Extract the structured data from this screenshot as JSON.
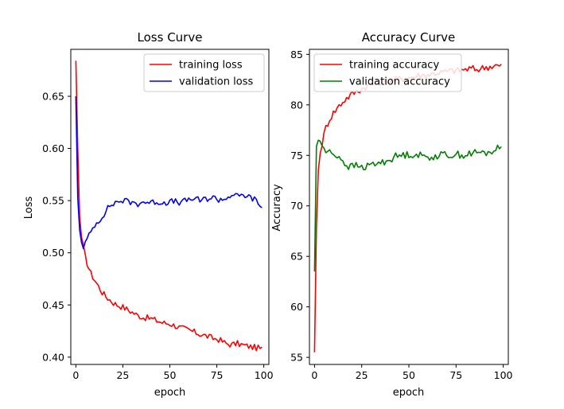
{
  "chart_data": [
    {
      "type": "line",
      "title": "Loss Curve",
      "xlabel": "epoch",
      "ylabel": "Loss",
      "xlim": [
        -2.7,
        102.7
      ],
      "ylim": [
        0.393,
        0.695
      ],
      "xticks": [
        0,
        25,
        50,
        75,
        100
      ],
      "yticks": [
        0.4,
        0.45,
        0.5,
        0.55,
        0.6,
        0.65
      ],
      "ytick_labels": [
        "0.40",
        "0.45",
        "0.50",
        "0.55",
        "0.60",
        "0.65"
      ],
      "legend": "upper-right",
      "grid": false,
      "series": [
        {
          "name": "training loss",
          "color": "#ff0000",
          "keypoints": [
            [
              0,
              0.684
            ],
            [
              1,
              0.6
            ],
            [
              2,
              0.535
            ],
            [
              3,
              0.515
            ],
            [
              4,
              0.505
            ],
            [
              5,
              0.496
            ],
            [
              6,
              0.49
            ],
            [
              8,
              0.48
            ],
            [
              10,
              0.474
            ],
            [
              12,
              0.468
            ],
            [
              14,
              0.462
            ],
            [
              16,
              0.458
            ],
            [
              18,
              0.455
            ],
            [
              20,
              0.452
            ],
            [
              22,
              0.45
            ],
            [
              25,
              0.448
            ],
            [
              28,
              0.445
            ],
            [
              30,
              0.443
            ],
            [
              33,
              0.44
            ],
            [
              36,
              0.438
            ],
            [
              40,
              0.437
            ],
            [
              43,
              0.435
            ],
            [
              46,
              0.433
            ],
            [
              50,
              0.432
            ],
            [
              53,
              0.43
            ],
            [
              56,
              0.428
            ],
            [
              60,
              0.426
            ],
            [
              63,
              0.424
            ],
            [
              66,
              0.422
            ],
            [
              70,
              0.42
            ],
            [
              73,
              0.418
            ],
            [
              76,
              0.417
            ],
            [
              80,
              0.413
            ],
            [
              83,
              0.412
            ],
            [
              86,
              0.413
            ],
            [
              90,
              0.411
            ],
            [
              93,
              0.41
            ],
            [
              96,
              0.409
            ],
            [
              99,
              0.408
            ]
          ]
        },
        {
          "name": "validation loss",
          "color": "#0000ff",
          "keypoints": [
            [
              0,
              0.65
            ],
            [
              1,
              0.553
            ],
            [
              2,
              0.522
            ],
            [
              3,
              0.51
            ],
            [
              4,
              0.506
            ],
            [
              5,
              0.509
            ],
            [
              6,
              0.513
            ],
            [
              8,
              0.52
            ],
            [
              10,
              0.527
            ],
            [
              12,
              0.53
            ],
            [
              14,
              0.535
            ],
            [
              16,
              0.54
            ],
            [
              18,
              0.545
            ],
            [
              20,
              0.547
            ],
            [
              22,
              0.549
            ],
            [
              25,
              0.55
            ],
            [
              28,
              0.549
            ],
            [
              30,
              0.548
            ],
            [
              33,
              0.547
            ],
            [
              36,
              0.549
            ],
            [
              40,
              0.548
            ],
            [
              43,
              0.549
            ],
            [
              46,
              0.548
            ],
            [
              50,
              0.549
            ],
            [
              53,
              0.549
            ],
            [
              56,
              0.548
            ],
            [
              60,
              0.551
            ],
            [
              63,
              0.552
            ],
            [
              66,
              0.55
            ],
            [
              70,
              0.552
            ],
            [
              73,
              0.553
            ],
            [
              76,
              0.551
            ],
            [
              80,
              0.552
            ],
            [
              83,
              0.556
            ],
            [
              86,
              0.554
            ],
            [
              90,
              0.555
            ],
            [
              93,
              0.553
            ],
            [
              96,
              0.55
            ],
            [
              99,
              0.543
            ]
          ]
        }
      ]
    },
    {
      "type": "line",
      "title": "Accuracy Curve",
      "xlabel": "epoch",
      "ylabel": "Accuracy",
      "xlim": [
        -2.7,
        102.7
      ],
      "ylim": [
        54.3,
        85.5
      ],
      "xticks": [
        0,
        25,
        50,
        75,
        100
      ],
      "yticks": [
        55,
        60,
        65,
        70,
        75,
        80,
        85
      ],
      "ytick_labels": [
        "55",
        "60",
        "65",
        "70",
        "75",
        "80",
        "85"
      ],
      "legend": "upper-left",
      "grid": false,
      "series": [
        {
          "name": "training accuracy",
          "color": "#ff0000",
          "keypoints": [
            [
              0,
              55.5
            ],
            [
              1,
              68
            ],
            [
              2,
              73.5
            ],
            [
              3,
              75.2
            ],
            [
              4,
              76.2
            ],
            [
              5,
              77
            ],
            [
              6,
              77.8
            ],
            [
              8,
              78.6
            ],
            [
              10,
              79.2
            ],
            [
              12,
              79.7
            ],
            [
              14,
              80.1
            ],
            [
              16,
              80.5
            ],
            [
              18,
              80.8
            ],
            [
              20,
              81.1
            ],
            [
              22,
              81.3
            ],
            [
              25,
              81.6
            ],
            [
              28,
              81.9
            ],
            [
              30,
              82
            ],
            [
              33,
              82.2
            ],
            [
              36,
              82.3
            ],
            [
              40,
              82.4
            ],
            [
              43,
              82.5
            ],
            [
              46,
              82.6
            ],
            [
              50,
              82.7
            ],
            [
              53,
              82.8
            ],
            [
              56,
              82.9
            ],
            [
              60,
              83
            ],
            [
              63,
              83.1
            ],
            [
              66,
              83.2
            ],
            [
              70,
              83.3
            ],
            [
              73,
              83.4
            ],
            [
              76,
              83.4
            ],
            [
              80,
              83.5
            ],
            [
              83,
              83.6
            ],
            [
              86,
              83.5
            ],
            [
              90,
              83.7
            ],
            [
              93,
              83.8
            ],
            [
              96,
              83.9
            ],
            [
              99,
              83.8
            ]
          ]
        },
        {
          "name": "validation accuracy",
          "color": "#008000",
          "keypoints": [
            [
              0,
              63.5
            ],
            [
              1,
              75.9
            ],
            [
              2,
              76.5
            ],
            [
              3,
              76.4
            ],
            [
              4,
              76
            ],
            [
              5,
              75.6
            ],
            [
              6,
              75.4
            ],
            [
              8,
              75.3
            ],
            [
              10,
              75.1
            ],
            [
              12,
              75
            ],
            [
              14,
              74.7
            ],
            [
              16,
              74.2
            ],
            [
              18,
              73.9
            ],
            [
              20,
              73.9
            ],
            [
              22,
              74
            ],
            [
              25,
              73.8
            ],
            [
              28,
              73.9
            ],
            [
              30,
              74.1
            ],
            [
              33,
              74.2
            ],
            [
              36,
              74.3
            ],
            [
              40,
              74.6
            ],
            [
              43,
              74.9
            ],
            [
              46,
              75
            ],
            [
              50,
              75.1
            ],
            [
              53,
              75.1
            ],
            [
              56,
              75
            ],
            [
              60,
              74.8
            ],
            [
              63,
              74.9
            ],
            [
              66,
              75
            ],
            [
              70,
              75.1
            ],
            [
              73,
              75
            ],
            [
              76,
              75.1
            ],
            [
              80,
              75
            ],
            [
              83,
              75.2
            ],
            [
              86,
              75.3
            ],
            [
              90,
              75.2
            ],
            [
              93,
              75.3
            ],
            [
              96,
              75.6
            ],
            [
              99,
              75.8
            ]
          ]
        }
      ]
    }
  ]
}
